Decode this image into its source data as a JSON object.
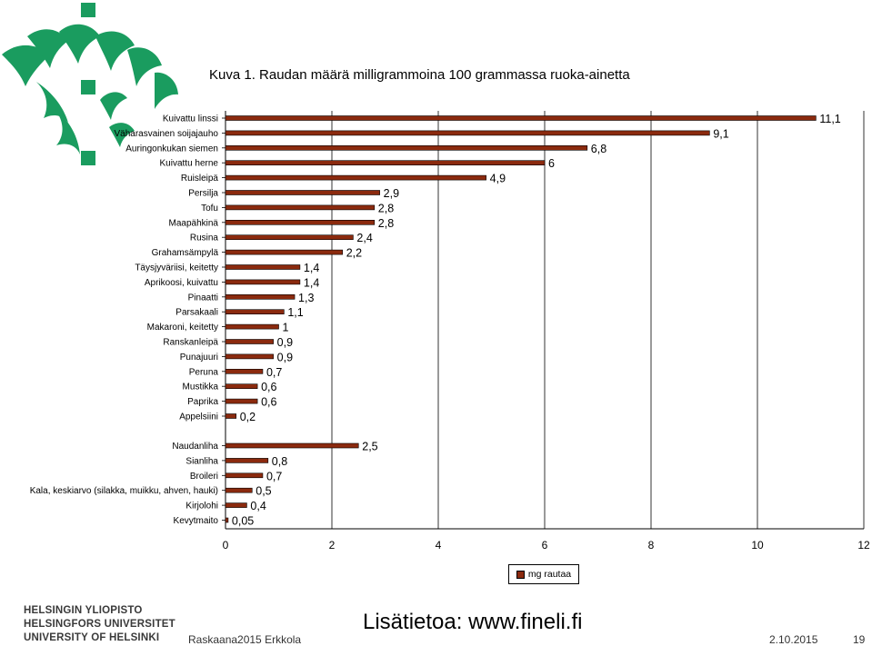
{
  "brand": {
    "accent_color": "#1a9c5f",
    "logo_icon": "university-flame-logo-icon",
    "names": [
      "HELSINGIN YLIOPISTO",
      "HELSINGFORS UNIVERSITET",
      "UNIVERSITY OF HELSINKI"
    ]
  },
  "more_info": "Lisätietoa: www.fineli.fi",
  "footer": {
    "left": "Raskaana2015 Erkkola",
    "date": "2.10.2015",
    "page": "19"
  },
  "chart_data": {
    "type": "bar",
    "orientation": "horizontal",
    "title": "Kuva 1. Raudan määrä milligrammoina 100 grammassa ruoka-ainetta",
    "xlabel": "",
    "ylabel": "",
    "xlim": [
      0,
      12
    ],
    "x_ticks": [
      "0",
      "2",
      "4",
      "6",
      "8",
      "10",
      "12"
    ],
    "grid": "vertical",
    "legend_position": "bottom",
    "bar_color": "#8b2a0e",
    "series": [
      {
        "name": "mg rautaa",
        "groups": [
          {
            "categories": [
              "Kuivattu linssi",
              "Väharasvainen soijajauho",
              "Auringonkukan siemen",
              "Kuivattu herne",
              "Ruisleipä",
              "Persilja",
              "Tofu",
              "Maapähkinä",
              "Rusina",
              "Grahamsämpylä",
              "Täysjyväriisi, keitetty",
              "Aprikoosi, kuivattu",
              "Pinaatti",
              "Parsakaali",
              "Makaroni, keitetty",
              "Ranskanleipä",
              "Punajuuri",
              "Peruna",
              "Mustikka",
              "Paprika",
              "Appelsiini"
            ],
            "values": [
              11.1,
              9.1,
              6.8,
              6,
              4.9,
              2.9,
              2.8,
              2.8,
              2.4,
              2.2,
              1.4,
              1.4,
              1.3,
              1.1,
              1,
              0.9,
              0.9,
              0.7,
              0.6,
              0.6,
              0.2
            ],
            "labels": [
              "11,1",
              "9,1",
              "6,8",
              "6",
              "4,9",
              "2,9",
              "2,8",
              "2,8",
              "2,4",
              "2,2",
              "1,4",
              "1,4",
              "1,3",
              "1,1",
              "1",
              "0,9",
              "0,9",
              "0,7",
              "0,6",
              "0,6",
              "0,2"
            ]
          },
          {
            "categories": [
              "Naudanliha",
              "Sianliha",
              "Broileri",
              "Kala, keskiarvo (silakka, muikku, ahven, hauki)",
              "Kirjolohi",
              "Kevytmaito"
            ],
            "values": [
              2.5,
              0.8,
              0.7,
              0.5,
              0.4,
              0.05
            ],
            "labels": [
              "2,5",
              "0,8",
              "0,7",
              "0,5",
              "0,4",
              "0,05"
            ]
          }
        ]
      }
    ]
  }
}
